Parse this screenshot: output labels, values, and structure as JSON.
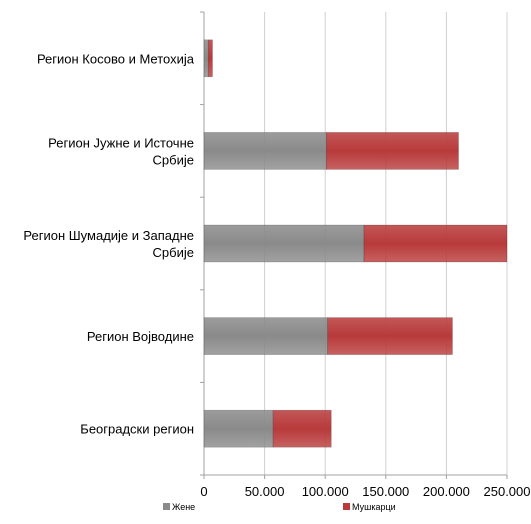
{
  "chart_data": {
    "type": "bar",
    "orientation": "horizontal",
    "stacked": true,
    "categories": [
      "Регион Косово и Метохија",
      "Регион Јужне и Источне Србије",
      "Регион Шумадије и Западне Србије",
      "Регион Војводине",
      "Београдски регион"
    ],
    "series": [
      {
        "name": "Жене",
        "color": "#8a8a8a",
        "values": [
          3500,
          101000,
          132000,
          102000,
          57000
        ]
      },
      {
        "name": "Мушкарци",
        "color": "#b83a3a",
        "values": [
          3500,
          109000,
          118000,
          103000,
          48000
        ]
      }
    ],
    "xlim": [
      0,
      250000
    ],
    "x_ticks": [
      "0",
      "50.000",
      "100.000",
      "150.000",
      "200.000",
      "250.000"
    ],
    "x_tick_values": [
      0,
      50000,
      100000,
      150000,
      200000,
      250000
    ],
    "grid": true,
    "legend_position": "bottom",
    "title": "",
    "xlabel": "",
    "ylabel": ""
  }
}
